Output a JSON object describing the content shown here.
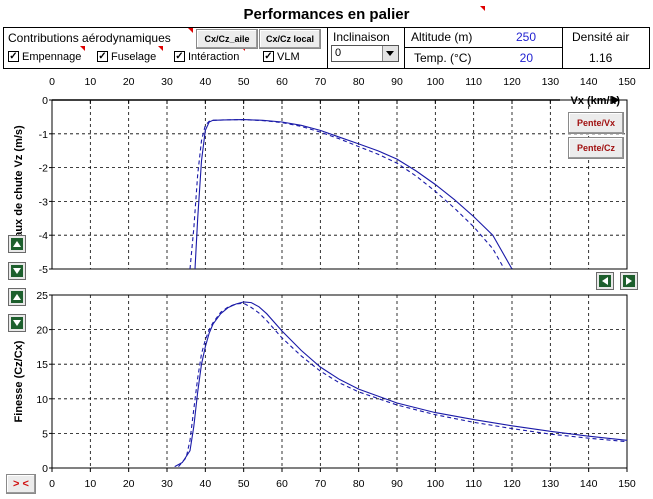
{
  "header": {
    "title": "Performances en palier",
    "contributions_label": "Contributions aérodynamiques",
    "checkboxes": [
      {
        "label": "Empennage",
        "checked": true
      },
      {
        "label": "Fuselage",
        "checked": true
      },
      {
        "label": "Intéraction",
        "checked": true
      },
      {
        "label": "VLM",
        "checked": true
      }
    ],
    "btn_cxcz_aile": "Cx/Cz_aile",
    "btn_cxcz_local": "Cx/Cz local",
    "inclinaison_label": "Inclinaison",
    "inclinaison_value": "0",
    "altitude_label": "Altitude (m)",
    "altitude_value": "250",
    "temp_label": "Temp. (°C)",
    "temp_value": "20",
    "densite_label": "Densité air",
    "densite_value": "1.16"
  },
  "buttons": {
    "pente_vx": "Pente/Vx",
    "pente_cz": "Pente/Cz",
    "swap": "> <"
  },
  "chart_data": [
    {
      "type": "line",
      "xlabel": "Vx (km/h)",
      "ylabel": "Taux de chute Vz (m/s)",
      "xlim": [
        0,
        150
      ],
      "ylim": [
        -5,
        0
      ],
      "xticks": [
        0,
        10,
        20,
        30,
        40,
        50,
        60,
        70,
        80,
        90,
        100,
        110,
        120,
        130,
        140,
        150
      ],
      "yticks": [
        0,
        -1,
        -2,
        -3,
        -4,
        -5
      ],
      "grid": true,
      "series": [
        {
          "style": "solid",
          "x": [
            37.3,
            38,
            39,
            40,
            41,
            42,
            45,
            50,
            55,
            60,
            65,
            70,
            75,
            80,
            85,
            90,
            95,
            100,
            105,
            110,
            115,
            120
          ],
          "y": [
            -5,
            -3.5,
            -1.8,
            -0.9,
            -0.65,
            -0.6,
            -0.59,
            -0.58,
            -0.6,
            -0.65,
            -0.75,
            -0.9,
            -1.1,
            -1.3,
            -1.5,
            -1.75,
            -2.1,
            -2.5,
            -2.95,
            -3.45,
            -4.0,
            -5.0
          ]
        },
        {
          "style": "dashed",
          "x": [
            36,
            37,
            38,
            39,
            40,
            41,
            42,
            45,
            50,
            55,
            60,
            65,
            70,
            75,
            80,
            85,
            90,
            95,
            100,
            105,
            110,
            115,
            118
          ],
          "y": [
            -5,
            -3.8,
            -2.2,
            -1.2,
            -0.75,
            -0.63,
            -0.6,
            -0.59,
            -0.58,
            -0.61,
            -0.67,
            -0.78,
            -0.95,
            -1.15,
            -1.38,
            -1.6,
            -1.87,
            -2.25,
            -2.7,
            -3.2,
            -3.75,
            -4.4,
            -5.0
          ]
        }
      ]
    },
    {
      "type": "line",
      "ylabel": "Finesse (Cz/Cx)",
      "xlim": [
        0,
        150
      ],
      "ylim": [
        0,
        25
      ],
      "xticks": [
        0,
        10,
        20,
        30,
        40,
        50,
        60,
        70,
        80,
        90,
        100,
        110,
        120,
        130,
        140,
        150
      ],
      "yticks": [
        0,
        5,
        10,
        15,
        20,
        25
      ],
      "grid": true,
      "series": [
        {
          "style": "solid",
          "x": [
            32,
            34,
            36,
            37,
            38,
            39,
            40,
            41,
            42,
            44,
            46,
            48,
            50,
            52,
            54,
            56,
            60,
            65,
            70,
            75,
            80,
            90,
            100,
            110,
            120,
            130,
            140,
            150
          ],
          "y": [
            0.2,
            0.8,
            2.5,
            6,
            11,
            15,
            17.5,
            19.5,
            20.8,
            22.3,
            23.2,
            23.7,
            24,
            23.9,
            23.3,
            22.3,
            19.8,
            17,
            14.6,
            12.8,
            11.4,
            9.4,
            8,
            7,
            6.1,
            5.3,
            4.6,
            4.0
          ]
        },
        {
          "style": "dashed",
          "x": [
            33,
            35,
            36,
            37,
            38,
            39,
            40,
            41,
            42,
            44,
            46,
            48,
            50,
            52,
            54,
            56,
            60,
            65,
            70,
            75,
            80,
            90,
            100,
            110,
            120,
            130,
            140,
            150
          ],
          "y": [
            0.2,
            1.5,
            4,
            8.5,
            13,
            16.5,
            18.5,
            20,
            21,
            22.5,
            23.3,
            23.7,
            23.8,
            23.2,
            22.4,
            21.3,
            18.8,
            16.2,
            14,
            12.3,
            11,
            9.1,
            7.7,
            6.6,
            5.7,
            4.9,
            4.3,
            3.8
          ]
        }
      ]
    }
  ]
}
